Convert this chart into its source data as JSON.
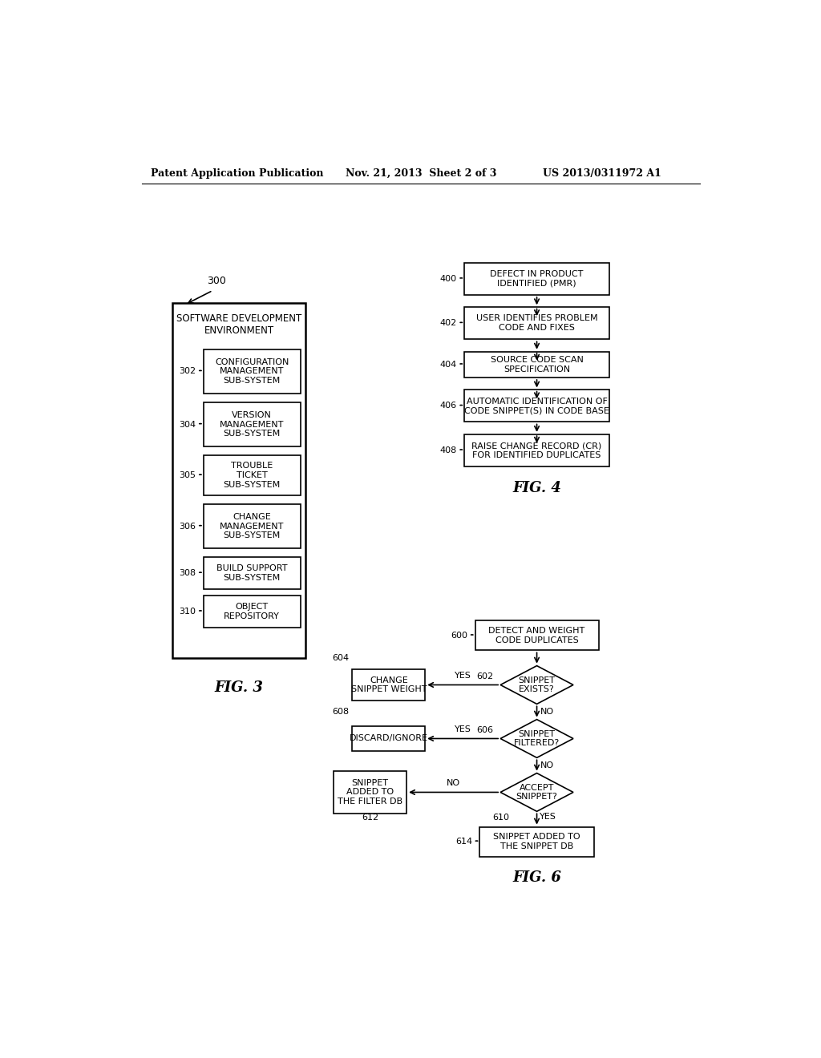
{
  "bg_color": "#ffffff",
  "header_left": "Patent Application Publication",
  "header_mid": "Nov. 21, 2013  Sheet 2 of 3",
  "header_right": "US 2013/0311972 A1",
  "fig3": {
    "outer_label": "SOFTWARE DEVELOPMENT\nENVIRONMENT",
    "ref_num": "300",
    "boxes": [
      {
        "id": "302",
        "label": "CONFIGURATION\nMANAGEMENT\nSUB-SYSTEM"
      },
      {
        "id": "304",
        "label": "VERSION\nMANAGEMENT\nSUB-SYSTEM"
      },
      {
        "id": "305",
        "label": "TROUBLE\nTICKET\nSUB-SYSTEM"
      },
      {
        "id": "306",
        "label": "CHANGE\nMANAGEMENT\nSUB-SYSTEM"
      },
      {
        "id": "308",
        "label": "BUILD SUPPORT\nSUB-SYSTEM"
      },
      {
        "id": "310",
        "label": "OBJECT\nREPOSITORY"
      }
    ]
  },
  "fig4": {
    "label": "FIG. 4",
    "boxes": [
      {
        "id": "400",
        "label": "DEFECT IN PRODUCT\nIDENTIFIED (PMR)"
      },
      {
        "id": "402",
        "label": "USER IDENTIFIES PROBLEM\nCODE AND FIXES"
      },
      {
        "id": "404",
        "label": "SOURCE CODE SCAN\nSPECIFICATION"
      },
      {
        "id": "406",
        "label": "AUTOMATIC IDENTIFICATION OF\nCODE SNIPPET(S) IN CODE BASE"
      },
      {
        "id": "408",
        "label": "RAISE CHANGE RECORD (CR)\nFOR IDENTIFIED DUPLICATES"
      }
    ]
  },
  "fig6": {
    "label": "FIG. 6"
  }
}
